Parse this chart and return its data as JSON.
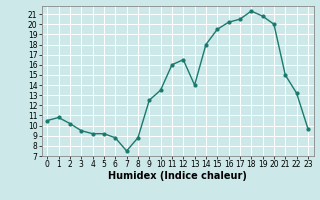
{
  "x": [
    0,
    1,
    2,
    3,
    4,
    5,
    6,
    7,
    8,
    9,
    10,
    11,
    12,
    13,
    14,
    15,
    16,
    17,
    18,
    19,
    20,
    21,
    22,
    23
  ],
  "y": [
    10.5,
    10.8,
    10.2,
    9.5,
    9.2,
    9.2,
    8.8,
    7.5,
    8.8,
    12.5,
    13.5,
    16.0,
    16.5,
    14.0,
    18.0,
    19.5,
    20.2,
    20.5,
    21.3,
    20.8,
    20.0,
    15.0,
    13.2,
    9.7
  ],
  "line_color": "#1a7a6e",
  "marker": "o",
  "markersize": 2.0,
  "linewidth": 1.0,
  "bg_color": "#cce8e8",
  "grid_color": "#ffffff",
  "xlabel": "Humidex (Indice chaleur)",
  "xlim": [
    -0.5,
    23.5
  ],
  "ylim": [
    7,
    21.8
  ],
  "yticks": [
    7,
    8,
    9,
    10,
    11,
    12,
    13,
    14,
    15,
    16,
    17,
    18,
    19,
    20,
    21
  ],
  "xtick_labels": [
    "0",
    "1",
    "2",
    "3",
    "4",
    "5",
    "6",
    "7",
    "8",
    "9",
    "10",
    "11",
    "12",
    "13",
    "14",
    "15",
    "16",
    "17",
    "18",
    "19",
    "20",
    "21",
    "22",
    "23"
  ],
  "tick_fontsize": 5.5,
  "xlabel_fontsize": 7.0
}
